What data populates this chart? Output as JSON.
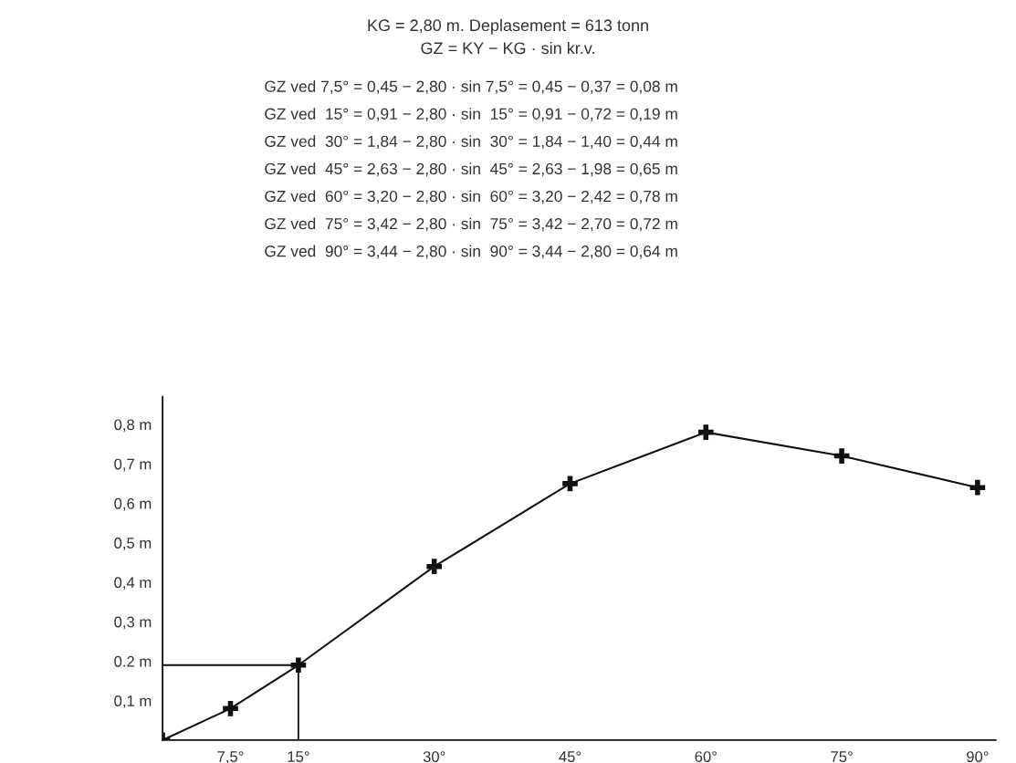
{
  "chart_data": {
    "type": "line",
    "title": "KG = 2,80 m. Deplasement = 613 tonn",
    "subtitle": "GZ = KY − KG · sin kr.v.",
    "annotations": [
      "GZ ved 7,5° = 0,45 − 2,80 · sin 7,5° = 0,45 − 0,37 = 0,08 m",
      "GZ ved  15° = 0,91 − 2,80 · sin  15° = 0,91 − 0,72 = 0,19 m",
      "GZ ved  30° = 1,84 − 2,80 · sin  30° = 1,84 − 1,40 = 0,44 m",
      "GZ ved  45° = 2,63 − 2,80 · sin  45° = 2,63 − 1,98 = 0,65 m",
      "GZ ved  60° = 3,20 − 2,80 · sin  60° = 3,20 − 2,42 = 0,78 m",
      "GZ ved  75° = 3,42 − 2,80 · sin  75° = 3,42 − 2,70 = 0,72 m",
      "GZ ved  90° = 3,44 − 2,80 · sin  90° = 3,44 − 2,80 = 0,64 m"
    ],
    "series": [
      {
        "color": "#111111",
        "marker": "cross",
        "x": [
          0,
          7.5,
          15,
          30,
          45,
          60,
          75,
          90
        ],
        "values": [
          0,
          0.08,
          0.19,
          0.44,
          0.65,
          0.78,
          0.72,
          0.64
        ]
      }
    ],
    "ref_lines": [
      {
        "axis": "y",
        "value": 0.19,
        "color": "#111111"
      },
      {
        "axis": "x",
        "value": 15,
        "color": "#111111"
      }
    ],
    "xlim": [
      0,
      92
    ],
    "ylim": [
      0,
      0.87
    ],
    "xticks": [
      {
        "value": 7.5,
        "label": "7,5°"
      },
      {
        "value": 15,
        "label": "15°"
      },
      {
        "value": 30,
        "label": "30°"
      },
      {
        "value": 45,
        "label": "45°"
      },
      {
        "value": 60,
        "label": "60°"
      },
      {
        "value": 75,
        "label": "75°"
      },
      {
        "value": 90,
        "label": "90°"
      }
    ],
    "yticks": [
      {
        "value": 0.1,
        "label": "0,1 m"
      },
      {
        "value": 0.2,
        "label": "0.2 m"
      },
      {
        "value": 0.3,
        "label": "0,3 m"
      },
      {
        "value": 0.4,
        "label": "0,4 m"
      },
      {
        "value": 0.5,
        "label": "0,5 m"
      },
      {
        "value": 0.6,
        "label": "0,6 m"
      },
      {
        "value": 0.7,
        "label": "0,7 m"
      },
      {
        "value": 0.8,
        "label": "0,8 m"
      }
    ],
    "grid": false,
    "legend": false
  }
}
